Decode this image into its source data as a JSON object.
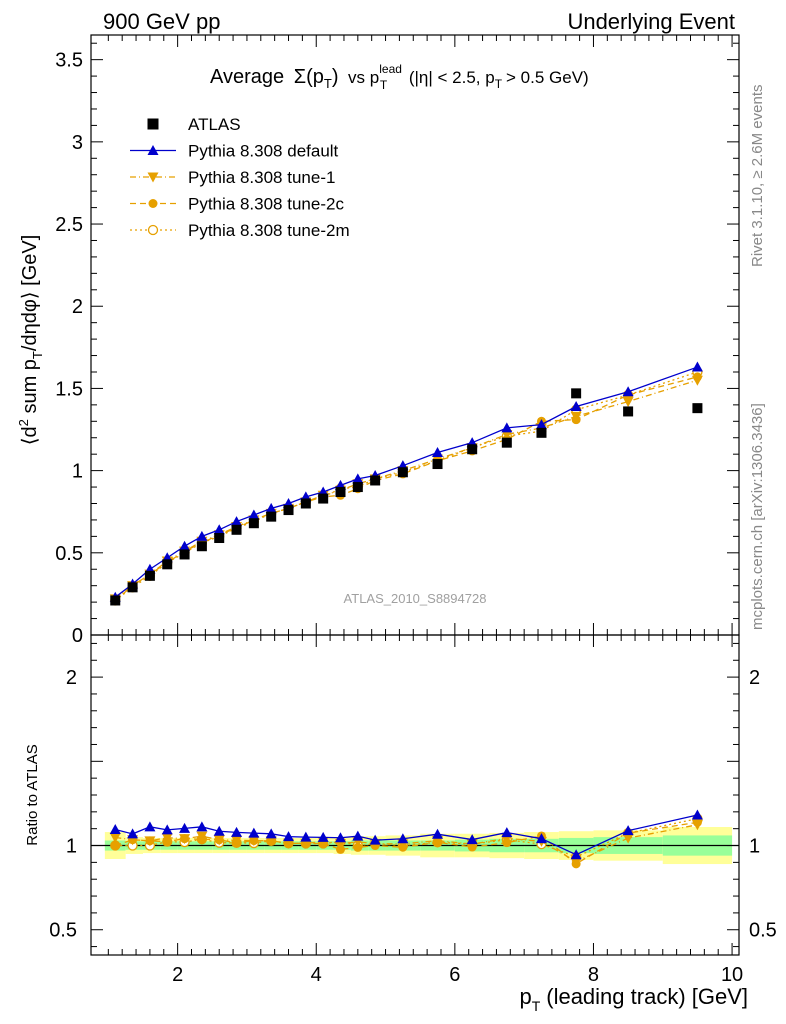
{
  "header": {
    "left": "900 GeV pp",
    "right": "Underlying Event"
  },
  "side_labels": {
    "rivet": "Rivet 3.1.10, ≥ 2.6M events",
    "mcplots": "mcplots.cern.ch [arXiv:1306.3436]"
  },
  "watermark": "ATLAS_2010_S8894728",
  "chart_data": {
    "type": "scatter",
    "title_parts": {
      "prefix": "Average",
      "sigma": "Σ(p",
      "sigma_sub": "T",
      "sigma_close": ")",
      "vs": "vs p",
      "lead_sup": "lead",
      "lead_sub": "T",
      "cuts": "(|η| < 2.5, p",
      "cuts_sub": "T",
      "cuts_tail": "> 0.5 GeV)"
    },
    "ylabel_parts": {
      "open": "⟨d",
      "sup": "2",
      "mid": " sum p",
      "sub": "T",
      "tail": "/dηdφ⟩ [GeV]"
    },
    "xlabel_parts": {
      "p": "p",
      "sub": "T",
      "tail": "(leading track) [GeV]"
    },
    "ratio_ylabel": "Ratio to ATLAS",
    "main_ylim": [
      0,
      3.65
    ],
    "main_yticks": [
      "0",
      "0.5",
      "1",
      "1.5",
      "2",
      "2.5",
      "3",
      "3.5"
    ],
    "ratio_ylim": [
      0.35,
      2.25
    ],
    "ratio_yticks": [
      "0.5",
      "1",
      "2"
    ],
    "xlim": [
      0.75,
      10.1
    ],
    "xticks": [
      "2",
      "4",
      "6",
      "8",
      "10"
    ],
    "legend_position": "top-left",
    "x": [
      1.1,
      1.35,
      1.6,
      1.85,
      2.1,
      2.35,
      2.6,
      2.85,
      3.1,
      3.35,
      3.6,
      3.85,
      4.1,
      4.35,
      4.6,
      4.85,
      5.25,
      5.75,
      6.25,
      6.75,
      7.25,
      7.75,
      8.5,
      9.5
    ],
    "series": [
      {
        "name": "ATLAS",
        "color": "#000000",
        "marker": "square",
        "values": [
          0.21,
          0.29,
          0.36,
          0.43,
          0.49,
          0.54,
          0.59,
          0.64,
          0.68,
          0.72,
          0.76,
          0.8,
          0.83,
          0.87,
          0.9,
          0.94,
          0.99,
          1.04,
          1.13,
          1.17,
          1.23,
          1.47,
          1.36,
          1.38
        ]
      },
      {
        "name": "Pythia 8.308 default",
        "color": "#0000cc",
        "marker": "triangle-up",
        "line": "solid",
        "values": [
          0.23,
          0.31,
          0.4,
          0.47,
          0.54,
          0.6,
          0.64,
          0.69,
          0.73,
          0.77,
          0.8,
          0.84,
          0.87,
          0.91,
          0.95,
          0.97,
          1.03,
          1.11,
          1.17,
          1.26,
          1.28,
          1.39,
          1.48,
          1.63
        ]
      },
      {
        "name": "Pythia 8.308 tune-1",
        "color": "#e6a000",
        "marker": "triangle-down",
        "line": "dashdot",
        "values": [
          0.22,
          0.3,
          0.37,
          0.45,
          0.51,
          0.57,
          0.61,
          0.66,
          0.7,
          0.74,
          0.77,
          0.81,
          0.85,
          0.88,
          0.92,
          0.95,
          1.0,
          1.07,
          1.14,
          1.22,
          1.26,
          1.33,
          1.42,
          1.55
        ]
      },
      {
        "name": "Pythia 8.308 tune-2c",
        "color": "#e6a000",
        "marker": "circle-filled",
        "line": "dashed",
        "values": [
          0.21,
          0.3,
          0.37,
          0.44,
          0.51,
          0.56,
          0.61,
          0.65,
          0.7,
          0.74,
          0.77,
          0.81,
          0.84,
          0.85,
          0.89,
          0.94,
          0.98,
          1.06,
          1.12,
          1.19,
          1.3,
          1.31,
          1.46,
          1.57
        ]
      },
      {
        "name": "Pythia 8.308 tune-2m",
        "color": "#e6a000",
        "marker": "circle-open",
        "line": "dotted",
        "values": [
          0.21,
          0.29,
          0.36,
          0.44,
          0.5,
          0.56,
          0.6,
          0.65,
          0.69,
          0.74,
          0.77,
          0.81,
          0.84,
          0.89,
          0.9,
          0.95,
          0.99,
          1.06,
          1.14,
          1.21,
          1.24,
          1.37,
          1.46,
          1.6
        ]
      }
    ],
    "ratio_bands": {
      "edges": [
        0.95,
        1.25,
        1.5,
        1.75,
        2.0,
        2.25,
        2.5,
        2.75,
        3.0,
        3.25,
        3.5,
        3.75,
        4.0,
        4.25,
        4.5,
        4.75,
        5.0,
        5.5,
        6.0,
        6.5,
        7.0,
        7.5,
        8.0,
        9.0,
        10.0
      ],
      "stat": [
        0.03,
        0.025,
        0.025,
        0.025,
        0.025,
        0.025,
        0.025,
        0.025,
        0.025,
        0.025,
        0.025,
        0.025,
        0.025,
        0.025,
        0.03,
        0.03,
        0.03,
        0.03,
        0.035,
        0.04,
        0.04,
        0.045,
        0.05,
        0.06
      ],
      "total": [
        0.08,
        0.05,
        0.045,
        0.045,
        0.045,
        0.045,
        0.045,
        0.045,
        0.045,
        0.045,
        0.045,
        0.045,
        0.045,
        0.05,
        0.055,
        0.055,
        0.06,
        0.07,
        0.07,
        0.075,
        0.08,
        0.085,
        0.09,
        0.11
      ],
      "stat_color": "#99ff99",
      "total_color": "#ffff99"
    }
  }
}
